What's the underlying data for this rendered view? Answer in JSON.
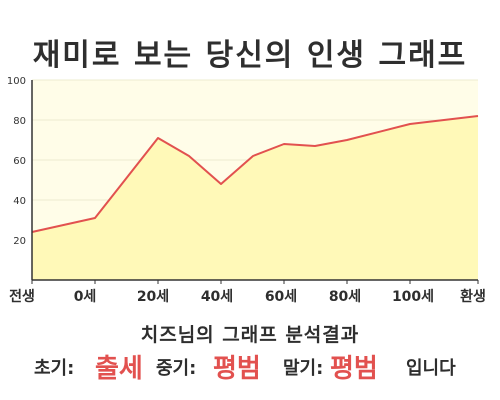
{
  "title": "재미로 보는 당신의 인생 그래프",
  "chart_data": {
    "type": "area",
    "title": "재미로 보는 당신의 인생 그래프",
    "x_tick_labels": [
      "전생",
      "0세",
      "20세",
      "40세",
      "60세",
      "80세",
      "100세",
      "환생"
    ],
    "y_ticks": [
      20,
      40,
      60,
      80,
      100
    ],
    "ylim": [
      0,
      100
    ],
    "grid": true,
    "series": [
      {
        "values": [
          {
            "x": "전생",
            "y": 24
          },
          {
            "x": "0세",
            "y": 31
          },
          {
            "x": "20세",
            "y": 71
          },
          {
            "x": "30세",
            "y": 62
          },
          {
            "x": "40세",
            "y": 48
          },
          {
            "x": "50세",
            "y": 62
          },
          {
            "x": "60세",
            "y": 68
          },
          {
            "x": "70세",
            "y": 67
          },
          {
            "x": "80세",
            "y": 70
          },
          {
            "x": "100세",
            "y": 78
          },
          {
            "x": "환생",
            "y": 82
          }
        ]
      }
    ],
    "line_color": "#e2514f",
    "fill_color": "#fff9b8",
    "plot_background": "#fffde8"
  },
  "summary": {
    "heading": "치즈님의 그래프 분석결과",
    "early_label": "초기:",
    "early_value": "출세",
    "middle_label": "중기:",
    "middle_value": "평범",
    "late_label": "말기:",
    "late_value": "평범",
    "ending": "입니다"
  }
}
